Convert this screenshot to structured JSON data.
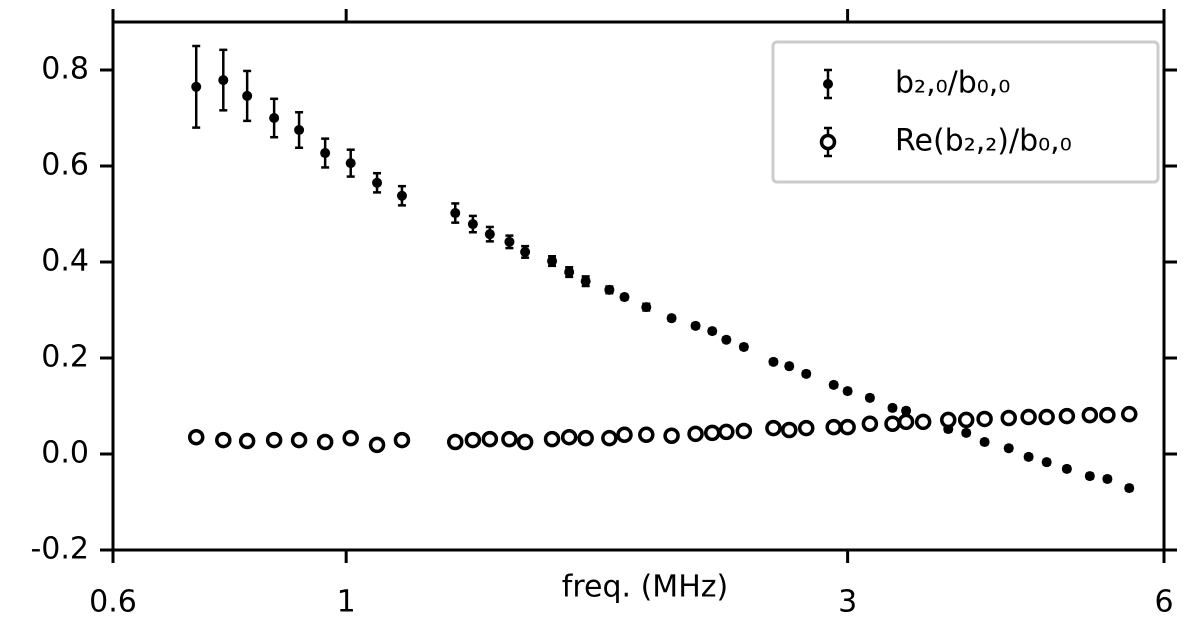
{
  "chart_data": {
    "type": "scatter",
    "xlabel": "freq. (MHz)",
    "xscale": "log",
    "xlim": [
      0.6,
      6
    ],
    "xticks": [
      0.6,
      1,
      3,
      6
    ],
    "ylim": [
      -0.2,
      0.9
    ],
    "yticks": [
      -0.2,
      {
        "value": 0,
        "label": "0.0"
      },
      0.2,
      0.4,
      0.6,
      0.8
    ],
    "legend": "upper right",
    "x": [
      0.72,
      0.764,
      0.805,
      0.854,
      0.902,
      0.955,
      1.01,
      1.07,
      1.13,
      1.27,
      1.32,
      1.37,
      1.43,
      1.48,
      1.57,
      1.63,
      1.69,
      1.78,
      1.84,
      1.93,
      2.04,
      2.15,
      2.23,
      2.3,
      2.39,
      2.55,
      2.64,
      2.74,
      2.91,
      3.0,
      3.15,
      3.31,
      3.41,
      3.54,
      3.74,
      3.89,
      4.05,
      4.27,
      4.46,
      4.64,
      4.85,
      5.1,
      5.3,
      5.56
    ],
    "series": [
      {
        "name": "b₂,₀/b₀,₀",
        "color": "#000000",
        "marker": "filled",
        "values": [
          0.765,
          0.779,
          0.746,
          0.7,
          0.675,
          0.627,
          0.606,
          0.565,
          0.538,
          0.502,
          0.479,
          0.458,
          0.442,
          0.421,
          0.402,
          0.379,
          0.36,
          0.342,
          0.327,
          0.306,
          0.283,
          0.267,
          0.256,
          0.238,
          0.223,
          0.192,
          0.183,
          0.167,
          0.144,
          0.131,
          0.117,
          0.096,
          0.09,
          null,
          0.052,
          0.044,
          0.025,
          0.012,
          -0.006,
          -0.017,
          -0.031,
          -0.046,
          -0.052,
          -0.071
        ],
        "errors": [
          0.085,
          0.063,
          0.052,
          0.04,
          0.037,
          0.03,
          0.028,
          0.02,
          0.02,
          0.02,
          0.017,
          0.015,
          0.013,
          0.012,
          0.01,
          0.01,
          0.01,
          0.007,
          0.005,
          0.007,
          0.005,
          0.005,
          0.005,
          0.005,
          0.005,
          0.005,
          0.005,
          0.005,
          0.005,
          0.005,
          0.005,
          0.005,
          0.005,
          null,
          0.005,
          0.005,
          0.005,
          0.005,
          0.005,
          0.005,
          0.005,
          0.005,
          0.005,
          0.005
        ]
      },
      {
        "name": "Re(b₂,₂)/b₀,₀",
        "color": "#000000",
        "marker": "open",
        "values": [
          0.035,
          0.029,
          0.027,
          0.029,
          0.029,
          0.025,
          0.033,
          0.019,
          0.029,
          0.025,
          0.029,
          0.031,
          0.031,
          0.025,
          0.031,
          0.035,
          0.033,
          0.033,
          0.04,
          0.04,
          0.038,
          0.042,
          0.044,
          0.046,
          0.048,
          0.054,
          0.05,
          0.054,
          0.056,
          0.056,
          0.063,
          0.063,
          0.067,
          0.067,
          0.071,
          0.071,
          0.073,
          0.075,
          0.077,
          0.077,
          0.079,
          0.081,
          0.081,
          0.083
        ]
      }
    ]
  }
}
